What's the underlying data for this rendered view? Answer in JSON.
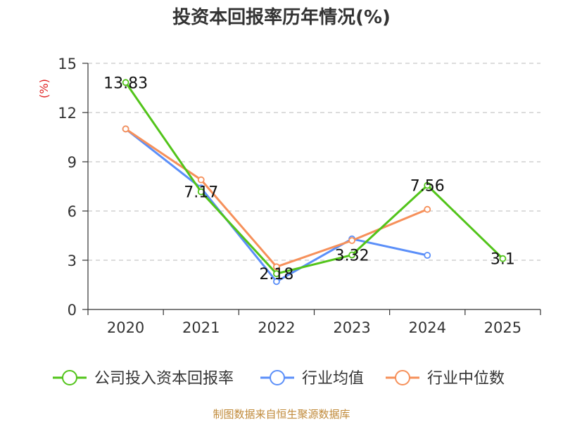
{
  "chart_data": {
    "type": "line",
    "title": "投资本回报率历年情况(%)",
    "ylabel": "(%)",
    "xlabel": "",
    "categories": [
      "2020",
      "2021",
      "2022",
      "2023",
      "2024",
      "2025"
    ],
    "ylim": [
      0,
      15
    ],
    "yticks": [
      0,
      3,
      6,
      9,
      12,
      15
    ],
    "grid": true,
    "legend_position": "bottom",
    "series": [
      {
        "name": "公司投入资本回报率",
        "color": "#52c41a",
        "values": [
          13.83,
          7.17,
          2.18,
          3.32,
          7.56,
          3.1
        ],
        "labels": [
          "13.83",
          "7.17",
          "2.18",
          "3.32",
          "7.56",
          "3.1"
        ]
      },
      {
        "name": "行业均值",
        "color": "#5b8ff9",
        "values": [
          11.0,
          7.4,
          1.7,
          4.3,
          3.3,
          null
        ]
      },
      {
        "name": "行业中位数",
        "color": "#f6905a",
        "values": [
          11.0,
          7.9,
          2.6,
          4.2,
          6.1,
          null
        ]
      }
    ],
    "source": "制图数据来自恒生聚源数据库"
  }
}
